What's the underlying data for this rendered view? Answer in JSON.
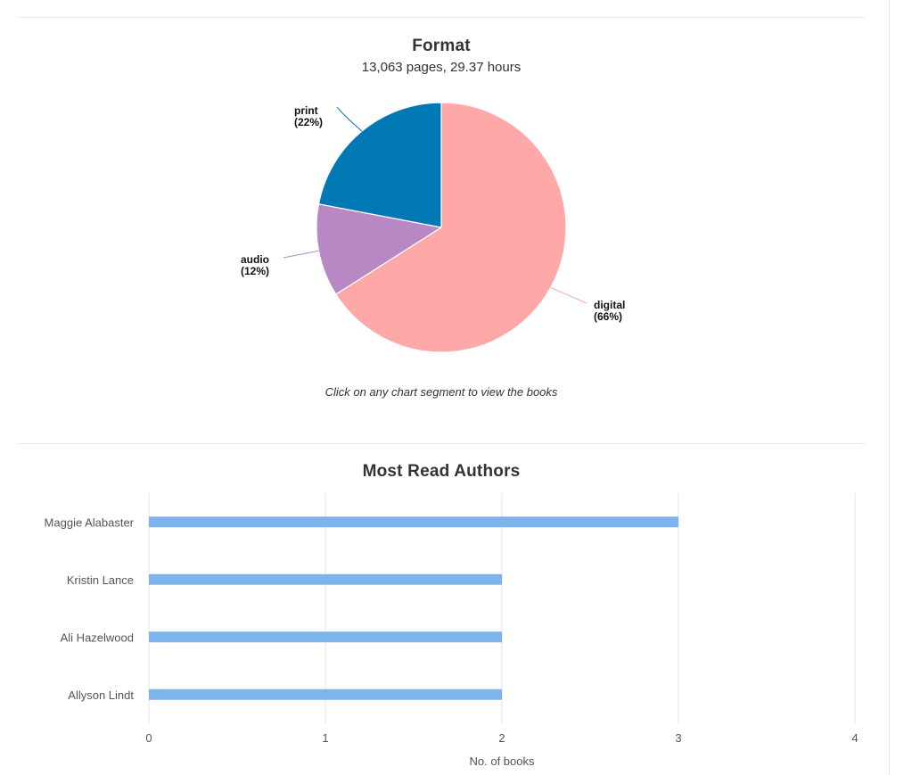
{
  "chart_data": [
    {
      "type": "pie",
      "title": "Format",
      "subtitle": "13,063 pages, 29.37 hours",
      "caption": "Click on any chart segment to view the books",
      "slices": [
        {
          "label": "digital",
          "pct_label": "(66%)",
          "value": 66,
          "color": "#fea8a8"
        },
        {
          "label": "audio",
          "pct_label": "(12%)",
          "value": 12,
          "color": "#b888c4"
        },
        {
          "label": "print",
          "pct_label": "(22%)",
          "value": 22,
          "color": "#0078b4"
        }
      ]
    },
    {
      "type": "bar",
      "orientation": "horizontal",
      "title": "Most Read Authors",
      "categories": [
        "Maggie Alabaster",
        "Kristin Lance",
        "Ali Hazelwood",
        "Allyson Lindt"
      ],
      "values": [
        3,
        2,
        2,
        2
      ],
      "xlabel": "No. of books",
      "xlim": [
        0,
        4
      ],
      "xticks": [
        "0",
        "1",
        "2",
        "3",
        "4"
      ],
      "grid": true,
      "bar_color": "#7eb4ec"
    }
  ]
}
